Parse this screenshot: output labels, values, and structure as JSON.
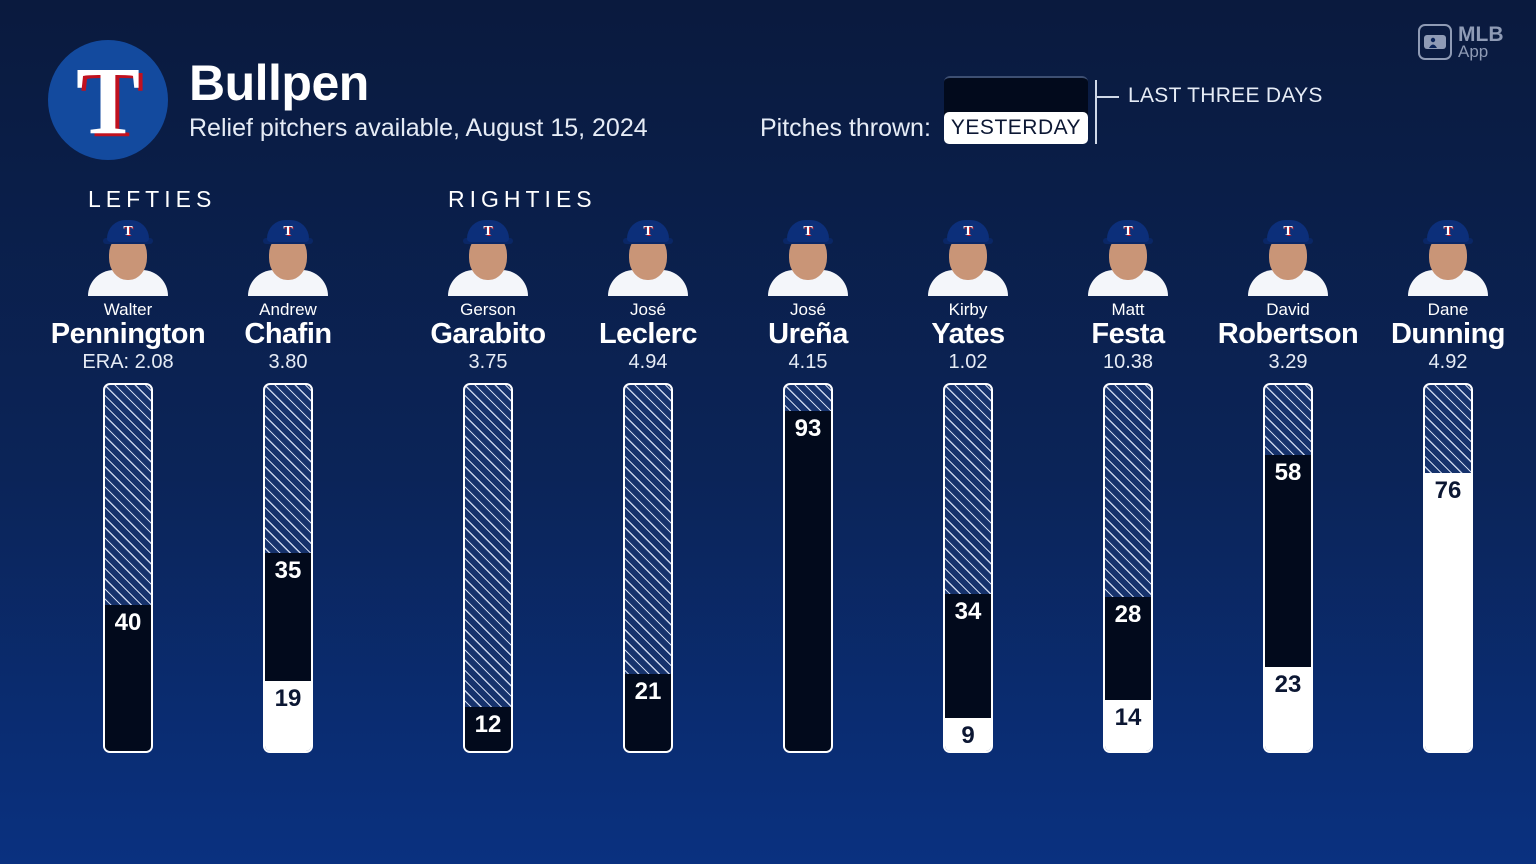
{
  "header": {
    "logo_letter": "T",
    "title": "Bullpen",
    "subtitle": "Relief pitchers available, August 15, 2024",
    "pitches_label": "Pitches thrown:",
    "legend_yesterday": "YESTERDAY",
    "legend_last_three": "LAST THREE DAYS",
    "mlb_app_line1": "MLB",
    "mlb_app_line2": "App"
  },
  "groups": {
    "lefties": "LEFTIES",
    "righties": "RIGHTIES"
  },
  "colors": {
    "yesterday": "#ffffff",
    "last_three_days": "#020a1c",
    "accent_red": "#c0111f",
    "team_blue": "#134a9e"
  },
  "chart_data": {
    "type": "bar",
    "stacked": true,
    "ylim": [
      0,
      100
    ],
    "categories": [
      "Pennington",
      "Chafin",
      "Garabito",
      "Leclerc",
      "Ureña",
      "Yates",
      "Festa",
      "Robertson",
      "Dunning"
    ],
    "series": [
      {
        "name": "YESTERDAY",
        "values": [
          0,
          19,
          0,
          0,
          0,
          9,
          14,
          23,
          76
        ]
      },
      {
        "name": "LAST THREE DAYS",
        "values": [
          40,
          35,
          12,
          21,
          93,
          34,
          28,
          58,
          0
        ]
      }
    ],
    "pitchers": [
      {
        "first": "Walter",
        "last": "Pennington",
        "era": "ERA: 2.08",
        "yesterday": null,
        "last3": 40,
        "hand": "L"
      },
      {
        "first": "Andrew",
        "last": "Chafin",
        "era": "3.80",
        "yesterday": 19,
        "last3": 35,
        "hand": "L"
      },
      {
        "first": "Gerson",
        "last": "Garabito",
        "era": "3.75",
        "yesterday": null,
        "last3": 12,
        "hand": "R"
      },
      {
        "first": "José",
        "last": "Leclerc",
        "era": "4.94",
        "yesterday": null,
        "last3": 21,
        "hand": "R"
      },
      {
        "first": "José",
        "last": "Ureña",
        "era": "4.15",
        "yesterday": null,
        "last3": 93,
        "hand": "R"
      },
      {
        "first": "Kirby",
        "last": "Yates",
        "era": "1.02",
        "yesterday": 9,
        "last3": 34,
        "hand": "R"
      },
      {
        "first": "Matt",
        "last": "Festa",
        "era": "10.38",
        "yesterday": 14,
        "last3": 28,
        "hand": "R"
      },
      {
        "first": "David",
        "last": "Robertson",
        "era": "3.29",
        "yesterday": 23,
        "last3": 58,
        "hand": "R"
      },
      {
        "first": "Dane",
        "last": "Dunning",
        "era": "4.92",
        "yesterday": 76,
        "last3": null,
        "hand": "R"
      }
    ]
  }
}
